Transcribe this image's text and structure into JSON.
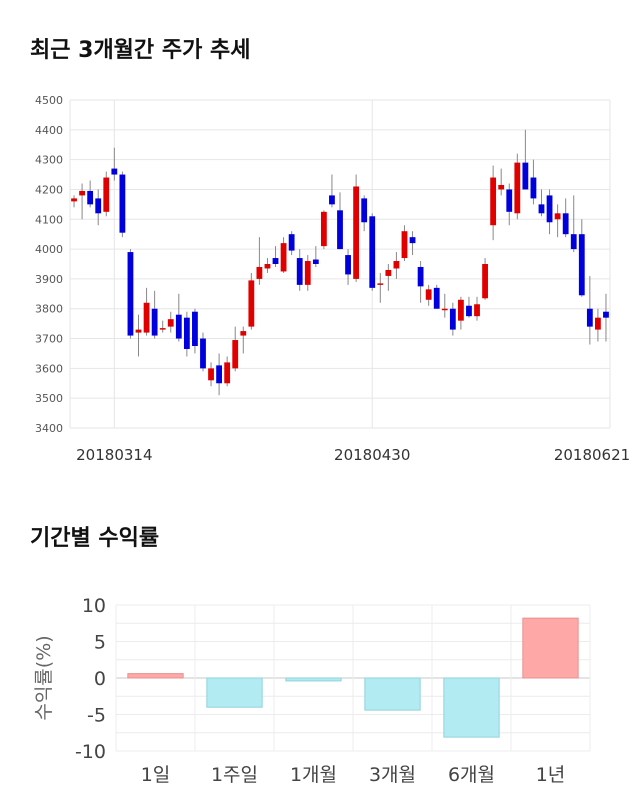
{
  "sections": {
    "price_title": "최근 3개월간 주가 추세",
    "return_title": "기간별 수익률"
  },
  "colors": {
    "up": "#e00000",
    "down": "#0000dd",
    "wick": "#888888",
    "grid": "#e6e6e6",
    "bar_positive": "#ffa8a8",
    "bar_positive_border": "#e89090",
    "bar_negative": "#b3ebf2",
    "bar_negative_border": "#8fd3dd"
  },
  "chart_data": [
    {
      "type": "candlestick",
      "title": "최근 3개월간 주가 추세",
      "ylim": [
        3400,
        4500
      ],
      "y_ticks": [
        "4500",
        "4400",
        "4300",
        "4200",
        "4100",
        "4000",
        "3900",
        "3800",
        "3700",
        "3600",
        "3500",
        "3400"
      ],
      "x_tick_labels": [
        {
          "index": 5,
          "label": "20180314"
        },
        {
          "index": 37,
          "label": "20180430"
        },
        {
          "index": 71,
          "label": "20180621"
        }
      ],
      "candles": [
        [
          4160,
          4180,
          4140,
          4170
        ],
        [
          4180,
          4220,
          4100,
          4195
        ],
        [
          4195,
          4230,
          4140,
          4150
        ],
        [
          4170,
          4200,
          4080,
          4120
        ],
        [
          4125,
          4260,
          4110,
          4240
        ],
        [
          4270,
          4340,
          4230,
          4250
        ],
        [
          4250,
          4260,
          4040,
          4055
        ],
        [
          3990,
          4000,
          3700,
          3710
        ],
        [
          3720,
          3780,
          3640,
          3730
        ],
        [
          3720,
          3870,
          3710,
          3820
        ],
        [
          3800,
          3860,
          3700,
          3710
        ],
        [
          3730,
          3760,
          3720,
          3735
        ],
        [
          3740,
          3790,
          3720,
          3765
        ],
        [
          3780,
          3850,
          3690,
          3700
        ],
        [
          3770,
          3790,
          3640,
          3665
        ],
        [
          3790,
          3800,
          3650,
          3675
        ],
        [
          3700,
          3720,
          3590,
          3600
        ],
        [
          3560,
          3620,
          3540,
          3600
        ],
        [
          3610,
          3650,
          3510,
          3550
        ],
        [
          3550,
          3640,
          3540,
          3620
        ],
        [
          3600,
          3740,
          3590,
          3695
        ],
        [
          3710,
          3740,
          3650,
          3725
        ],
        [
          3740,
          3920,
          3730,
          3895
        ],
        [
          3900,
          4040,
          3880,
          3940
        ],
        [
          3935,
          3970,
          3920,
          3950
        ],
        [
          3970,
          4010,
          3940,
          3950
        ],
        [
          3925,
          4040,
          3920,
          4020
        ],
        [
          4050,
          4060,
          3980,
          3995
        ],
        [
          3970,
          4000,
          3860,
          3880
        ],
        [
          3880,
          3980,
          3860,
          3960
        ],
        [
          3965,
          4010,
          3940,
          3950
        ],
        [
          4010,
          4130,
          4000,
          4125
        ],
        [
          4180,
          4250,
          4140,
          4150
        ],
        [
          4130,
          4190,
          4000,
          4000
        ],
        [
          3980,
          4000,
          3880,
          3915
        ],
        [
          3900,
          4250,
          3890,
          4210
        ],
        [
          4170,
          4180,
          4060,
          4090
        ],
        [
          4110,
          4120,
          3860,
          3870
        ],
        [
          3880,
          3920,
          3820,
          3885
        ],
        [
          3910,
          3950,
          3860,
          3930
        ],
        [
          3935,
          3990,
          3900,
          3960
        ],
        [
          3970,
          4080,
          3960,
          4060
        ],
        [
          4040,
          4060,
          3980,
          4020
        ],
        [
          3940,
          3960,
          3820,
          3875
        ],
        [
          3830,
          3880,
          3810,
          3865
        ],
        [
          3870,
          3880,
          3800,
          3800
        ],
        [
          3800,
          3850,
          3770,
          3800
        ],
        [
          3800,
          3820,
          3710,
          3730
        ],
        [
          3760,
          3840,
          3730,
          3830
        ],
        [
          3810,
          3840,
          3770,
          3775
        ],
        [
          3775,
          3840,
          3760,
          3815
        ],
        [
          3835,
          3970,
          3830,
          3950
        ],
        [
          4080,
          4280,
          4030,
          4240
        ],
        [
          4200,
          4270,
          4180,
          4215
        ],
        [
          4200,
          4220,
          4080,
          4125
        ],
        [
          4120,
          4320,
          4100,
          4290
        ],
        [
          4290,
          4400,
          4200,
          4200
        ],
        [
          4240,
          4300,
          4150,
          4170
        ],
        [
          4150,
          4200,
          4110,
          4120
        ],
        [
          4180,
          4200,
          4050,
          4090
        ],
        [
          4100,
          4150,
          4040,
          4120
        ],
        [
          4120,
          4170,
          4040,
          4050
        ],
        [
          4050,
          4180,
          3990,
          4000
        ],
        [
          4050,
          4100,
          3840,
          3845
        ],
        [
          3800,
          3910,
          3680,
          3740
        ],
        [
          3730,
          3800,
          3690,
          3770
        ],
        [
          3790,
          3850,
          3690,
          3770
        ]
      ]
    },
    {
      "type": "bar",
      "title": "기간별 수익률",
      "ylabel": "수익률(%)",
      "ylim": [
        -10,
        10
      ],
      "y_ticks": [
        "10",
        "5",
        "0",
        "-5",
        "-10"
      ],
      "categories": [
        "1일",
        "1주일",
        "1개월",
        "3개월",
        "6개월",
        "1년"
      ],
      "values": [
        0.6,
        -4.0,
        -0.4,
        -4.4,
        -8.1,
        8.2
      ]
    }
  ]
}
